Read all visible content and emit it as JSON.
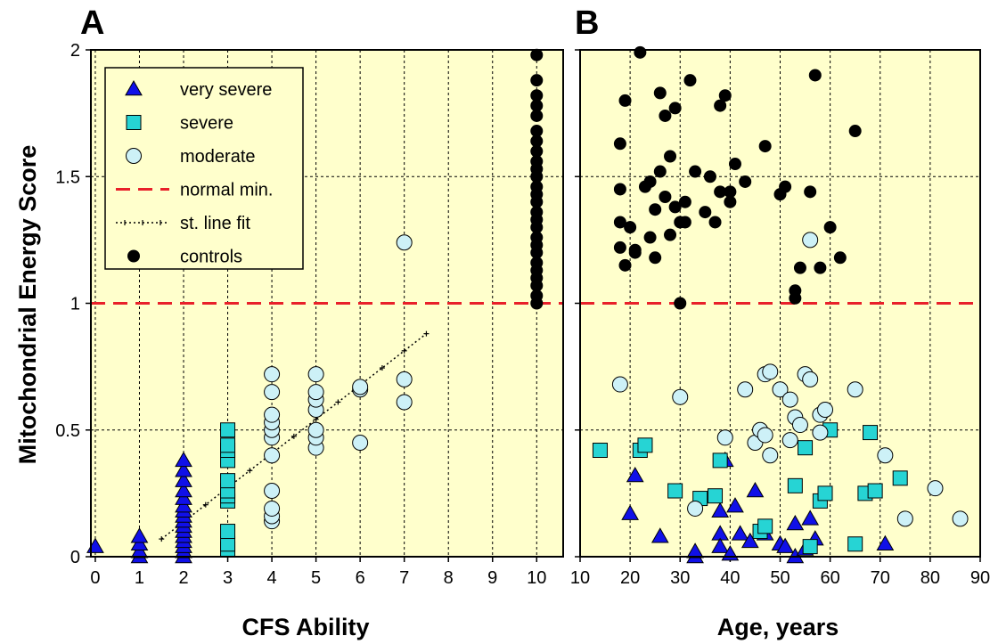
{
  "chart_data": [
    {
      "type": "scatter",
      "panel_label": "A",
      "xlabel": "CFS Ability",
      "ylabel": "Mitochondrial Energy Score",
      "xlim": [
        -0.1,
        10.6
      ],
      "ylim": [
        0,
        2
      ],
      "xticks": [
        "0",
        "1",
        "2",
        "3",
        "4",
        "5",
        "6",
        "7",
        "8",
        "9",
        "10"
      ],
      "yticks": [
        "0",
        "0.5",
        "1",
        "1.5",
        "2"
      ],
      "grid": true,
      "background": "#ffffcc",
      "legend": {
        "placement": "top-left",
        "entries": [
          {
            "key": "very_severe",
            "label": "very severe"
          },
          {
            "key": "severe",
            "label": "severe"
          },
          {
            "key": "moderate",
            "label": "moderate"
          },
          {
            "key": "normal_min",
            "label": "normal min."
          },
          {
            "key": "line_fit",
            "label": "st. line fit"
          },
          {
            "key": "controls",
            "label": "controls"
          }
        ]
      },
      "normal_min": 1.0,
      "line_fit": {
        "x": [
          1.5,
          7.5
        ],
        "y": [
          0.07,
          0.88
        ]
      },
      "series": [
        {
          "key": "very_severe",
          "marker": "triangle",
          "color": "#1010e8",
          "points": [
            [
              0,
              0.04
            ],
            [
              1,
              0.0
            ],
            [
              1,
              0.02
            ],
            [
              1,
              0.05
            ],
            [
              1,
              0.08
            ],
            [
              2,
              0.0
            ],
            [
              2,
              0.02
            ],
            [
              2,
              0.04
            ],
            [
              2,
              0.06
            ],
            [
              2,
              0.08
            ],
            [
              2,
              0.1
            ],
            [
              2,
              0.12
            ],
            [
              2,
              0.14
            ],
            [
              2,
              0.16
            ],
            [
              2,
              0.18
            ],
            [
              2,
              0.2
            ],
            [
              2,
              0.23
            ],
            [
              2,
              0.26
            ],
            [
              2,
              0.3
            ],
            [
              2,
              0.34
            ],
            [
              2,
              0.38
            ]
          ]
        },
        {
          "key": "severe",
          "marker": "square",
          "color": "#26d4d4",
          "points": [
            [
              3,
              0.03
            ],
            [
              3,
              0.05
            ],
            [
              3,
              0.1
            ],
            [
              3,
              0.22
            ],
            [
              3,
              0.24
            ],
            [
              3,
              0.26
            ],
            [
              3,
              0.3
            ],
            [
              3,
              0.38
            ],
            [
              3,
              0.42
            ],
            [
              3,
              0.44
            ],
            [
              3,
              0.5
            ]
          ]
        },
        {
          "key": "moderate",
          "marker": "circle",
          "color": "#cdf1f7",
          "points": [
            [
              4,
              0.14
            ],
            [
              4,
              0.16
            ],
            [
              4,
              0.19
            ],
            [
              4,
              0.26
            ],
            [
              4,
              0.4
            ],
            [
              4,
              0.47
            ],
            [
              4,
              0.5
            ],
            [
              4,
              0.53
            ],
            [
              4,
              0.56
            ],
            [
              4,
              0.65
            ],
            [
              4,
              0.72
            ],
            [
              5,
              0.43
            ],
            [
              5,
              0.47
            ],
            [
              5,
              0.5
            ],
            [
              5,
              0.58
            ],
            [
              5,
              0.62
            ],
            [
              5,
              0.65
            ],
            [
              5,
              0.72
            ],
            [
              6,
              0.45
            ],
            [
              6,
              0.66
            ],
            [
              6,
              0.67
            ],
            [
              7,
              0.61
            ],
            [
              7,
              0.7
            ],
            [
              7,
              1.24
            ]
          ]
        },
        {
          "key": "controls",
          "marker": "dot",
          "color": "#000000",
          "points": [
            [
              10,
              1.0
            ],
            [
              10,
              1.03
            ],
            [
              10,
              1.07
            ],
            [
              10,
              1.1
            ],
            [
              10,
              1.13
            ],
            [
              10,
              1.16
            ],
            [
              10,
              1.2
            ],
            [
              10,
              1.23
            ],
            [
              10,
              1.26
            ],
            [
              10,
              1.3
            ],
            [
              10,
              1.33
            ],
            [
              10,
              1.36
            ],
            [
              10,
              1.4
            ],
            [
              10,
              1.43
            ],
            [
              10,
              1.46
            ],
            [
              10,
              1.5
            ],
            [
              10,
              1.53
            ],
            [
              10,
              1.56
            ],
            [
              10,
              1.6
            ],
            [
              10,
              1.64
            ],
            [
              10,
              1.68
            ],
            [
              10,
              1.74
            ],
            [
              10,
              1.78
            ],
            [
              10,
              1.82
            ],
            [
              10,
              1.88
            ],
            [
              10,
              1.98
            ]
          ]
        }
      ]
    },
    {
      "type": "scatter",
      "panel_label": "B",
      "xlabel": "Age, years",
      "xlim": [
        10,
        90
      ],
      "ylim": [
        0,
        2
      ],
      "xticks": [
        "10",
        "20",
        "30",
        "40",
        "50",
        "60",
        "70",
        "80",
        "90"
      ],
      "grid": true,
      "background": "#ffffcc",
      "normal_min": 1.0,
      "series": [
        {
          "key": "very_severe",
          "marker": "triangle",
          "color": "#1010e8",
          "points": [
            [
              20,
              0.17
            ],
            [
              21,
              0.32
            ],
            [
              26,
              0.08
            ],
            [
              33,
              0.0
            ],
            [
              33,
              0.02
            ],
            [
              38,
              0.18
            ],
            [
              38,
              0.09
            ],
            [
              38,
              0.04
            ],
            [
              39,
              0.38
            ],
            [
              40,
              0.01
            ],
            [
              41,
              0.2
            ],
            [
              42,
              0.09
            ],
            [
              44,
              0.06
            ],
            [
              45,
              0.26
            ],
            [
              47,
              0.09
            ],
            [
              50,
              0.05
            ],
            [
              51,
              0.04
            ],
            [
              53,
              0.0
            ],
            [
              53,
              0.13
            ],
            [
              55,
              0.03
            ],
            [
              56,
              0.15
            ],
            [
              57,
              0.07
            ],
            [
              71,
              0.05
            ]
          ]
        },
        {
          "key": "severe",
          "marker": "square",
          "color": "#26d4d4",
          "points": [
            [
              14,
              0.42
            ],
            [
              22,
              0.42
            ],
            [
              23,
              0.44
            ],
            [
              29,
              0.26
            ],
            [
              34,
              0.23
            ],
            [
              37,
              0.24
            ],
            [
              38,
              0.38
            ],
            [
              46,
              0.1
            ],
            [
              47,
              0.12
            ],
            [
              53,
              0.28
            ],
            [
              55,
              0.43
            ],
            [
              56,
              0.04
            ],
            [
              58,
              0.22
            ],
            [
              59,
              0.25
            ],
            [
              60,
              0.5
            ],
            [
              65,
              0.05
            ],
            [
              67,
              0.25
            ],
            [
              68,
              0.49
            ],
            [
              69,
              0.26
            ],
            [
              74,
              0.31
            ]
          ]
        },
        {
          "key": "moderate",
          "marker": "circle",
          "color": "#cdf1f7",
          "points": [
            [
              18,
              0.68
            ],
            [
              30,
              0.63
            ],
            [
              33,
              0.19
            ],
            [
              39,
              0.47
            ],
            [
              43,
              0.66
            ],
            [
              45,
              0.45
            ],
            [
              46,
              0.5
            ],
            [
              47,
              0.72
            ],
            [
              47,
              0.48
            ],
            [
              48,
              0.73
            ],
            [
              48,
              0.4
            ],
            [
              50,
              0.66
            ],
            [
              52,
              0.46
            ],
            [
              52,
              0.62
            ],
            [
              53,
              0.55
            ],
            [
              54,
              0.52
            ],
            [
              55,
              0.72
            ],
            [
              56,
              1.25
            ],
            [
              56,
              0.7
            ],
            [
              58,
              0.49
            ],
            [
              58,
              0.56
            ],
            [
              59,
              0.58
            ],
            [
              65,
              0.66
            ],
            [
              71,
              0.4
            ],
            [
              75,
              0.15
            ],
            [
              81,
              0.27
            ],
            [
              86,
              0.15
            ]
          ]
        },
        {
          "key": "controls",
          "marker": "dot",
          "color": "#000000",
          "points": [
            [
              18,
              1.63
            ],
            [
              18,
              1.45
            ],
            [
              18,
              1.32
            ],
            [
              18,
              1.22
            ],
            [
              19,
              1.15
            ],
            [
              19,
              1.8
            ],
            [
              20,
              1.3
            ],
            [
              21,
              1.2
            ],
            [
              21,
              1.21
            ],
            [
              22,
              1.99
            ],
            [
              23,
              1.46
            ],
            [
              24,
              1.26
            ],
            [
              24,
              1.48
            ],
            [
              25,
              1.18
            ],
            [
              25,
              1.37
            ],
            [
              26,
              1.52
            ],
            [
              26,
              1.83
            ],
            [
              27,
              1.42
            ],
            [
              27,
              1.74
            ],
            [
              28,
              1.58
            ],
            [
              28,
              1.27
            ],
            [
              29,
              1.77
            ],
            [
              29,
              1.38
            ],
            [
              30,
              1.32
            ],
            [
              30,
              1.0
            ],
            [
              31,
              1.4
            ],
            [
              31,
              1.32
            ],
            [
              32,
              1.88
            ],
            [
              33,
              1.52
            ],
            [
              35,
              1.36
            ],
            [
              36,
              1.5
            ],
            [
              37,
              1.32
            ],
            [
              38,
              1.44
            ],
            [
              38,
              1.78
            ],
            [
              39,
              1.82
            ],
            [
              40,
              1.44
            ],
            [
              40,
              1.4
            ],
            [
              41,
              1.55
            ],
            [
              43,
              1.48
            ],
            [
              47,
              1.62
            ],
            [
              50,
              1.43
            ],
            [
              51,
              1.46
            ],
            [
              53,
              1.05
            ],
            [
              53,
              1.02
            ],
            [
              54,
              1.14
            ],
            [
              56,
              1.44
            ],
            [
              57,
              1.9
            ],
            [
              58,
              1.14
            ],
            [
              60,
              1.3
            ],
            [
              62,
              1.18
            ],
            [
              65,
              1.68
            ]
          ]
        }
      ]
    }
  ]
}
